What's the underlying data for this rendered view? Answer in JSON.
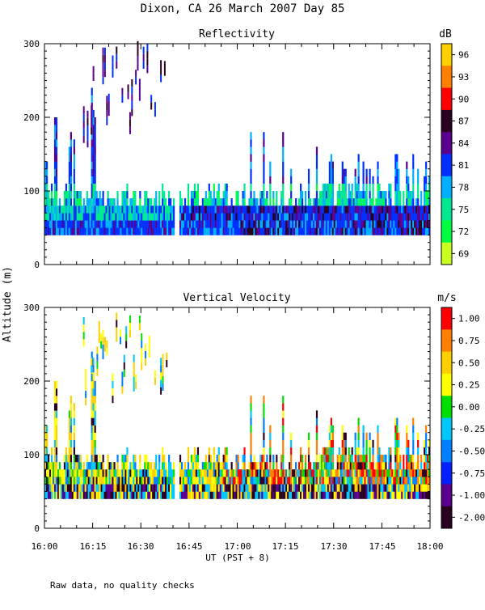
{
  "title": "Dixon, CA 26 March 2007  Day  85",
  "y_label": "Altitude (m)",
  "x_label": "UT  (PST + 8)",
  "footnote": "Raw data, no quality checks",
  "time_ticks": [
    "16:00",
    "16:15",
    "16:30",
    "16:45",
    "17:00",
    "17:15",
    "17:30",
    "17:45",
    "18:00"
  ],
  "chart_data": [
    {
      "type": "heatmap",
      "title": "Reflectivity",
      "xlabel": "UT  (PST + 8)",
      "ylabel": "Altitude (m)",
      "xlim": [
        "16:00",
        "18:00"
      ],
      "ylim": [
        0,
        300
      ],
      "y_ticks": [
        "0",
        "100",
        "200",
        "300"
      ],
      "colorbar": {
        "unit": "dB",
        "labels": [
          "96",
          "93",
          "90",
          "87",
          "84",
          "81",
          "78",
          "75",
          "72",
          "69"
        ],
        "colors": [
          "#ffd000",
          "#ff8000",
          "#ff0000",
          "#2a0020",
          "#5a0090",
          "#0030ff",
          "#00b0ff",
          "#00e890",
          "#00ff40",
          "#c8ff20"
        ]
      },
      "description_free_data": {
        "low_layer_range_m": [
          40,
          100
        ],
        "gap_minutes": [
          40.5,
          41.5
        ],
        "high_echo_window_minutes": [
          10,
          38
        ]
      }
    },
    {
      "type": "heatmap",
      "title": "Vertical Velocity",
      "xlabel": "UT  (PST + 8)",
      "ylabel": "Altitude (m)",
      "xlim": [
        "16:00",
        "18:00"
      ],
      "ylim": [
        0,
        300
      ],
      "y_ticks": [
        "0",
        "100",
        "200",
        "300"
      ],
      "colorbar": {
        "unit": "m/s",
        "labels": [
          "1.00",
          "0.75",
          "0.50",
          "0.25",
          "0.00",
          "-0.25",
          "-0.50",
          "-0.75",
          "-1.00",
          "-2.00"
        ],
        "colors": [
          "#ff0000",
          "#ff8000",
          "#ffd000",
          "#ffff00",
          "#00e000",
          "#00c8ff",
          "#0080ff",
          "#0020ff",
          "#5a0090",
          "#2a0020"
        ]
      },
      "description_free_data": {
        "low_layer_range_m": [
          40,
          100
        ],
        "gap_minutes": [
          40.5,
          41.5
        ],
        "high_echo_window_minutes": [
          10,
          38
        ]
      }
    }
  ]
}
